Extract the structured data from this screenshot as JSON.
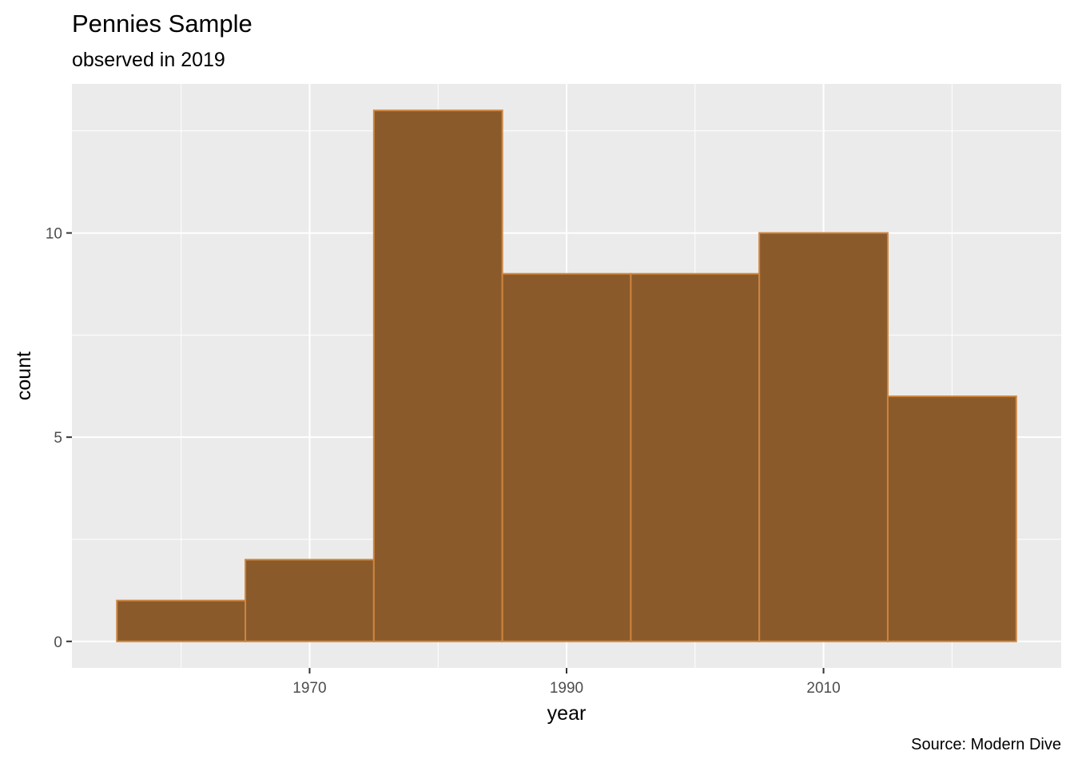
{
  "chart_data": {
    "type": "histogram",
    "title": "Pennies Sample",
    "subtitle": "observed in 2019",
    "caption": "Source: Modern Dive",
    "xlabel": "year",
    "ylabel": "count",
    "bins": [
      {
        "start": 1955,
        "end": 1965,
        "count": 1
      },
      {
        "start": 1965,
        "end": 1975,
        "count": 2
      },
      {
        "start": 1975,
        "end": 1985,
        "count": 13
      },
      {
        "start": 1985,
        "end": 1995,
        "count": 9
      },
      {
        "start": 1995,
        "end": 2005,
        "count": 9
      },
      {
        "start": 2005,
        "end": 2015,
        "count": 10
      },
      {
        "start": 2015,
        "end": 2025,
        "count": 6
      }
    ],
    "xlim": [
      1951.5,
      2028.5
    ],
    "ylim": [
      -0.65,
      13.65
    ],
    "x_ticks": [
      1970,
      1990,
      2010
    ],
    "x_tick_labels": [
      "1970",
      "1990",
      "2010"
    ],
    "x_minor_ticks": [
      1960,
      1980,
      2000,
      2020
    ],
    "y_ticks": [
      0,
      5,
      10
    ],
    "y_tick_labels": [
      "0",
      "5",
      "10"
    ],
    "y_minor_ticks": [
      2.5,
      7.5,
      12.5
    ],
    "grid": true,
    "colors": {
      "bar_fill": "#8b5a2b",
      "bar_outline": "#cd853f",
      "panel_background": "#ebebeb",
      "grid": "#ffffff"
    }
  }
}
